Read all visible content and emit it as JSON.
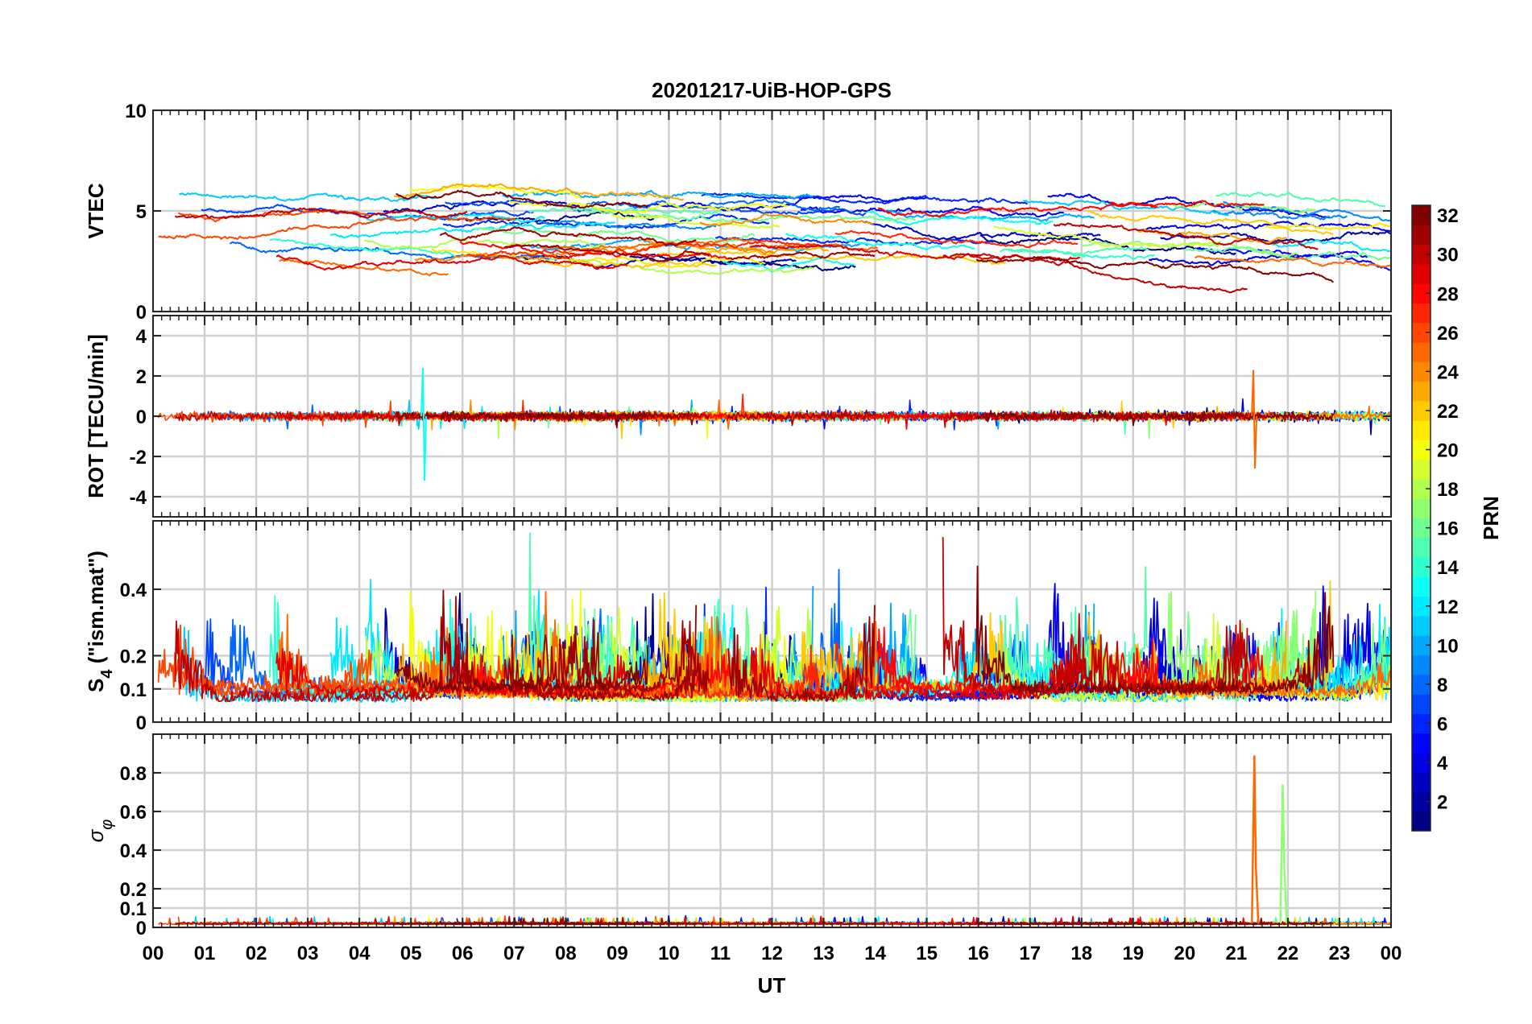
{
  "figure": {
    "title": "20201217-UiB-HOP-GPS",
    "xlabel": "UT",
    "x_tick_labels": [
      "00",
      "01",
      "02",
      "03",
      "04",
      "05",
      "06",
      "07",
      "08",
      "09",
      "10",
      "11",
      "12",
      "13",
      "14",
      "15",
      "16",
      "17",
      "18",
      "19",
      "20",
      "21",
      "22",
      "23",
      "00"
    ]
  },
  "colorbar": {
    "label": "PRN",
    "ticks": [
      "2",
      "4",
      "6",
      "8",
      "10",
      "12",
      "14",
      "16",
      "18",
      "20",
      "22",
      "24",
      "26",
      "28",
      "30",
      "32"
    ],
    "colormap": "jet",
    "range": [
      1,
      32
    ]
  },
  "chart_data": [
    {
      "type": "line",
      "panel": "VTEC",
      "ylabel": "VTEC",
      "ylim": [
        0,
        10
      ],
      "xlim": [
        0,
        24
      ],
      "ytick_labels": [
        "0",
        "5",
        "10"
      ],
      "ytick_values": [
        0,
        5,
        10
      ],
      "grid": true,
      "series_note": "one trace per GPS PRN (1-32), coloured by PRN",
      "typical_range": [
        1,
        6.5
      ],
      "annotations_max": 8
    },
    {
      "type": "line",
      "panel": "ROT",
      "ylabel": "ROT [TECU/min]",
      "ylim": [
        -5,
        5
      ],
      "xlim": [
        0,
        24
      ],
      "ytick_labels": [
        "-4",
        "-2",
        "0",
        "2",
        "4"
      ],
      "ytick_values": [
        -4,
        -2,
        0,
        2,
        4
      ],
      "grid": true,
      "spikes": [
        {
          "x": 5.2,
          "min": -3.2,
          "max": 2.4
        },
        {
          "x": 21.3,
          "min": -2.6,
          "max": 2.3
        }
      ]
    },
    {
      "type": "line",
      "panel": "S4",
      "ylabel": "S",
      "ylabel_sub": "4",
      "ylabel_suffix": " (\"ism.mat\")",
      "ylim": [
        0,
        0.6
      ],
      "xlim": [
        0,
        24
      ],
      "ytick_labels": [
        "0",
        "0.1",
        "0.2",
        "0.4"
      ],
      "ytick_values": [
        0,
        0.1,
        0.2,
        0.4
      ],
      "grid": true,
      "typical_range": [
        0.05,
        0.6
      ]
    },
    {
      "type": "line",
      "panel": "sigma_phi",
      "ylabel": "σ",
      "ylabel_sub": "φ",
      "ylim": [
        0,
        1
      ],
      "xlim": [
        0,
        24
      ],
      "ytick_labels": [
        "0",
        "0.1",
        "0.2",
        "0.4",
        "0.6",
        "0.8"
      ],
      "ytick_values": [
        0,
        0.1,
        0.2,
        0.4,
        0.6,
        0.8
      ],
      "grid": true,
      "spikes": [
        {
          "x": 21.35,
          "max": 0.89,
          "prn": 25
        },
        {
          "x": 21.9,
          "max": 0.74,
          "prn": 17
        }
      ]
    }
  ]
}
